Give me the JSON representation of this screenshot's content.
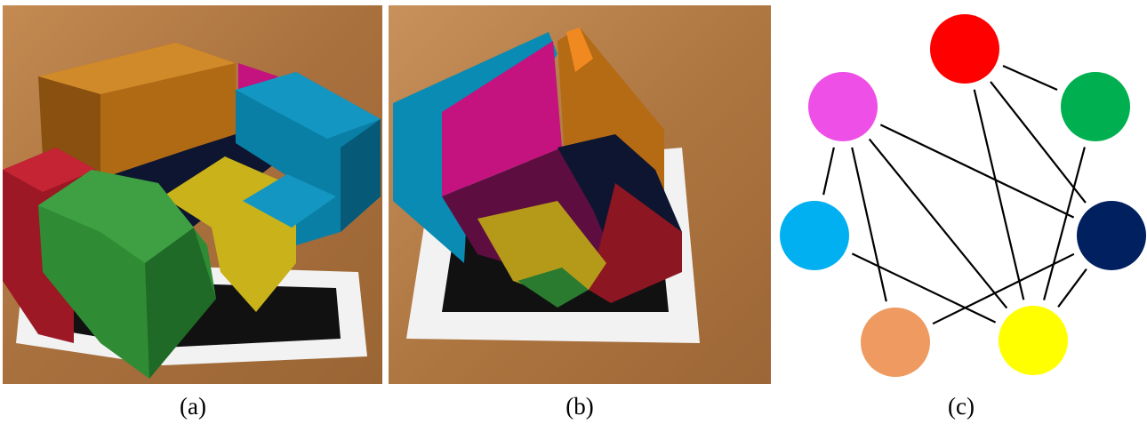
{
  "captions": {
    "a": "(a)",
    "b": "(b)",
    "c": "(c)"
  },
  "colors": {
    "wood": "#b07a45",
    "orange": "#c27014",
    "magenta": "#c4127e",
    "cyan": "#0a8bb3",
    "red": "#b8202e",
    "green": "#2f8c34",
    "yellow": "#c9b21a",
    "navy": "#0d1530"
  },
  "graph": {
    "nodes": [
      {
        "id": "red",
        "color": "#ff0000"
      },
      {
        "id": "green",
        "color": "#00b050"
      },
      {
        "id": "pink",
        "color": "#ee4fe6"
      },
      {
        "id": "navy",
        "color": "#002060"
      },
      {
        "id": "blue",
        "color": "#00b0f0"
      },
      {
        "id": "orange",
        "color": "#ee9a60"
      },
      {
        "id": "yellow",
        "color": "#ffff00"
      }
    ],
    "edges": [
      [
        "red",
        "green"
      ],
      [
        "red",
        "navy"
      ],
      [
        "red",
        "yellow"
      ],
      [
        "green",
        "yellow"
      ],
      [
        "pink",
        "blue"
      ],
      [
        "pink",
        "orange"
      ],
      [
        "pink",
        "yellow"
      ],
      [
        "pink",
        "navy"
      ],
      [
        "blue",
        "yellow"
      ],
      [
        "navy",
        "orange"
      ],
      [
        "navy",
        "yellow"
      ]
    ]
  }
}
